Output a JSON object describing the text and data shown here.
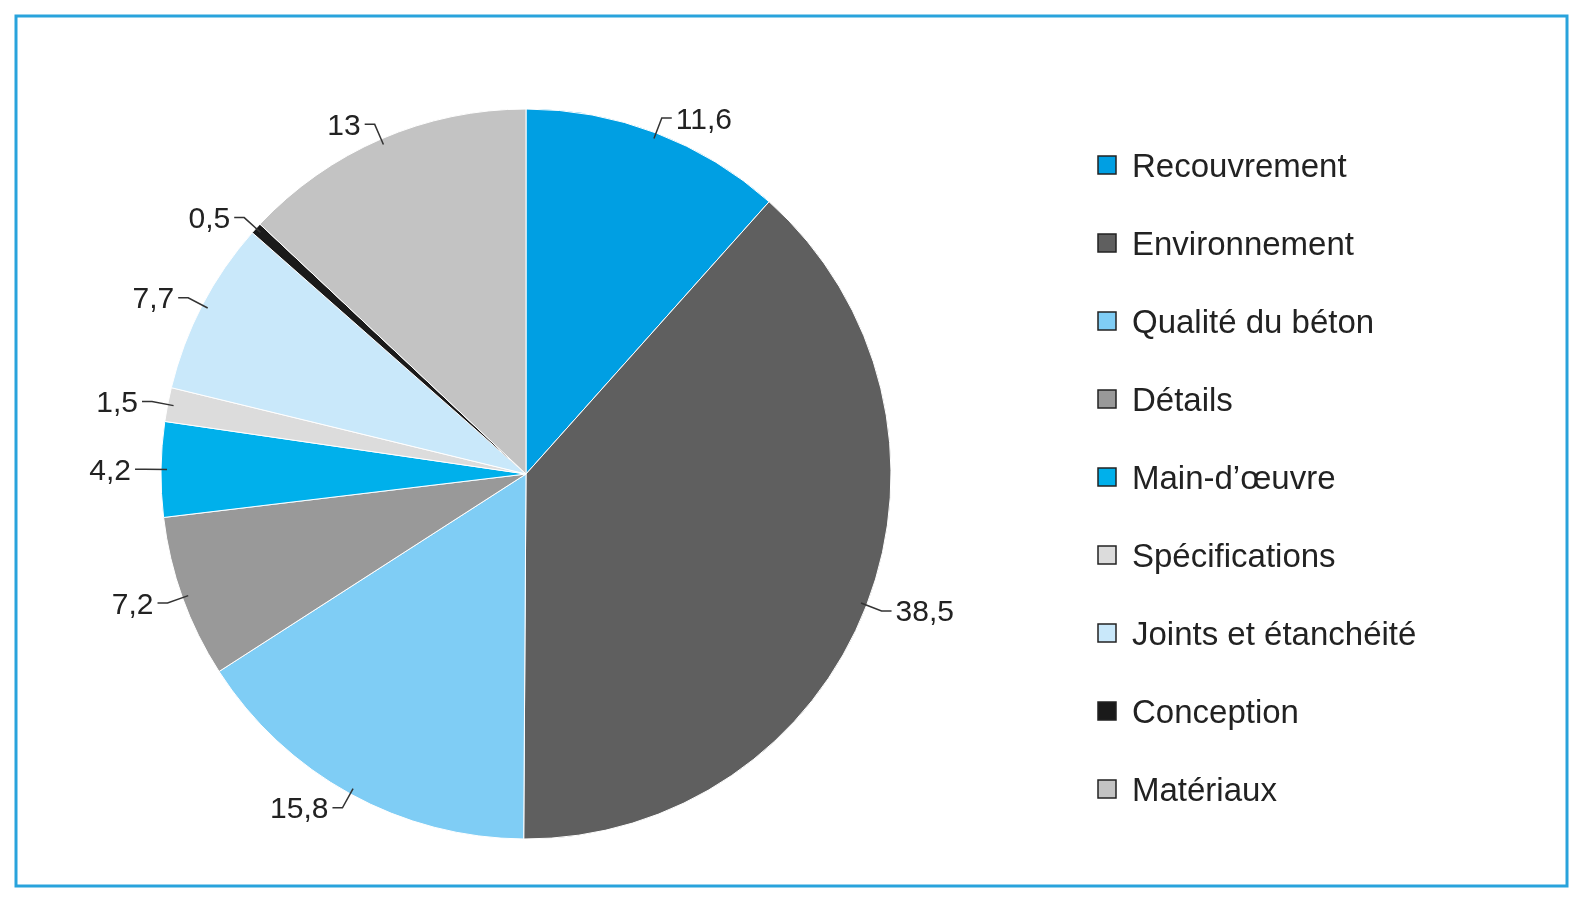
{
  "chart_data": {
    "type": "pie",
    "categories": [
      "Recouvrement",
      "Environnement",
      "Qualité du béton",
      "Détails",
      "Main-d’œuvre",
      "Spécifications",
      "Joints et étanchéité",
      "Conception",
      "Matériaux"
    ],
    "values": [
      11.6,
      38.5,
      15.8,
      7.2,
      4.2,
      1.5,
      7.7,
      0.5,
      13
    ],
    "colors": [
      "#009fe3",
      "#5f5f5f",
      "#7fcdf5",
      "#999999",
      "#00b0eb",
      "#dcdcdc",
      "#c9e8fa",
      "#1a1a1a",
      "#c3c3c3"
    ],
    "value_labels": [
      "11,6",
      "38,5",
      "15,8",
      "7,2",
      "4,2",
      "1,5",
      "7,7",
      "0,5",
      "13"
    ],
    "legend": "right"
  }
}
